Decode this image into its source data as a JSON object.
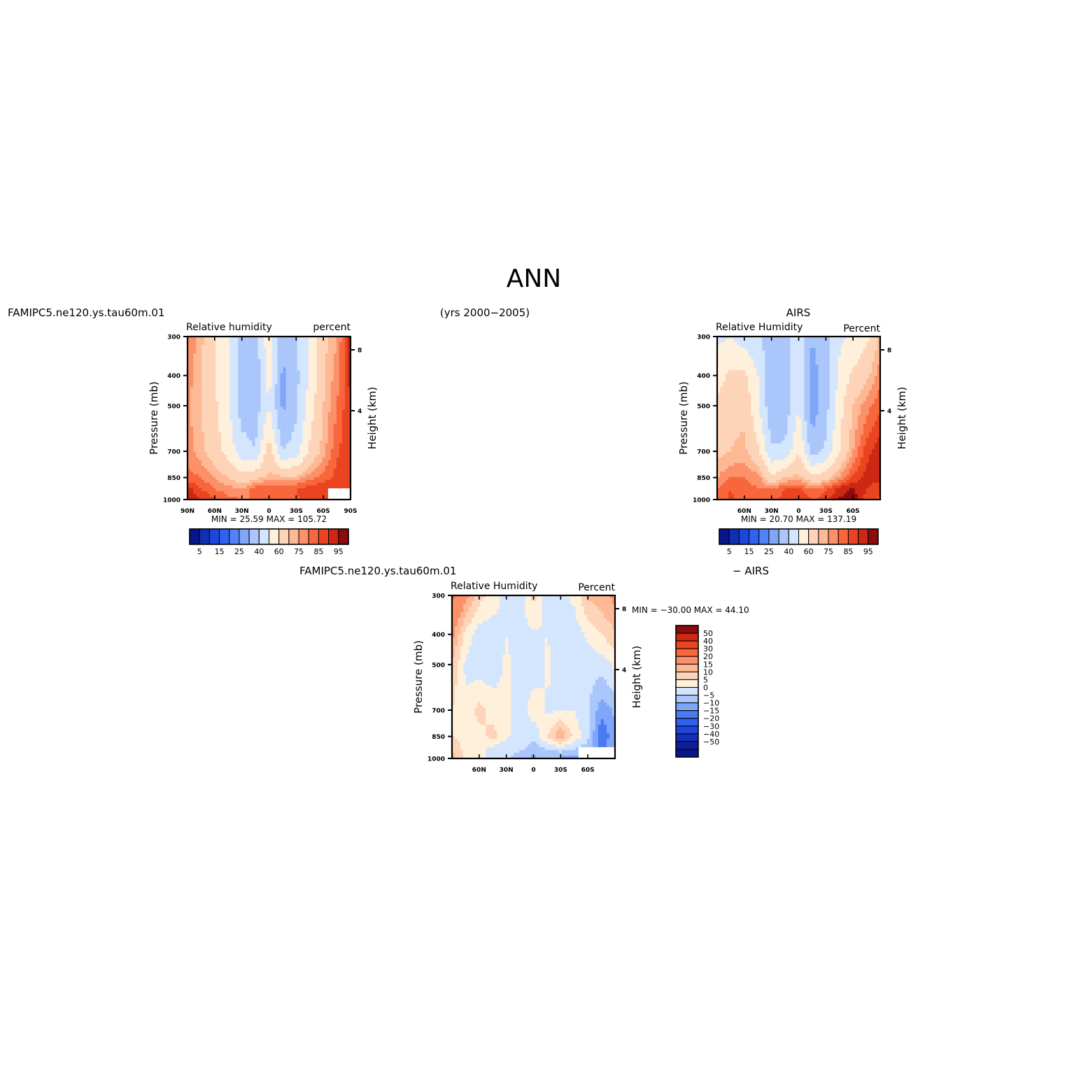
{
  "page_title": "ANN",
  "years": "(yrs 2000−2005)",
  "colors": {
    "abs_scale": [
      "#0a1688",
      "#1030b4",
      "#1e46dc",
      "#2f62ef",
      "#5283f6",
      "#80a6fa",
      "#aac6fb",
      "#d4e6fd",
      "#fff0dc",
      "#fed4b8",
      "#fdb894",
      "#fc9068",
      "#f8663c",
      "#ea4420",
      "#cc2814",
      "#8c0c0c"
    ],
    "diff_scale": [
      "#0a1688",
      "#10209c",
      "#1430b8",
      "#1e46dc",
      "#2f62ef",
      "#4a7af4",
      "#80a6fa",
      "#aac6fb",
      "#d4e6fd",
      "#fff0dc",
      "#fed4b8",
      "#fdb894",
      "#fc9068",
      "#f8663c",
      "#ea4420",
      "#cc2814",
      "#8c0c0c"
    ]
  },
  "chart_data": [
    {
      "type": "heatmap",
      "case_label": "FAMIPC5.ne120.ys.tau60m.01",
      "title": "Relative humidity",
      "units": "percent",
      "ylabel": "Pressure (mb)",
      "ylabel_right": "Height (km)",
      "y_ticks": [
        "300",
        "400",
        "500",
        "700",
        "850",
        "1000"
      ],
      "y_tick_values": [
        300,
        400,
        500,
        700,
        850,
        1000
      ],
      "ylim": [
        1000,
        300
      ],
      "right_ticks": [
        "8",
        "4"
      ],
      "x_ticks": [
        "90N",
        "60N",
        "30N",
        "0",
        "30S",
        "60S",
        "90S"
      ],
      "xlim": [
        90,
        -90
      ],
      "min_max": "MIN =   25.59   MAX = 105.72",
      "colorbar_labels": [
        "5",
        "15",
        "25",
        "40",
        "60",
        "75",
        "85",
        "95"
      ],
      "colorbar_levels": [
        5,
        10,
        15,
        20,
        25,
        30,
        40,
        50,
        60,
        70,
        75,
        80,
        85,
        90,
        95
      ],
      "masked_region": {
        "lat": [
          -64,
          -90
        ],
        "pressure": [
          925,
          1000
        ]
      },
      "field": {
        "lat": [
          90,
          75,
          60,
          45,
          30,
          15,
          0,
          -15,
          -30,
          -45,
          -60,
          -75,
          -90
        ],
        "pressure": [
          300,
          400,
          500,
          700,
          850,
          925,
          1000
        ],
        "values": [
          [
            80,
            72,
            60,
            50,
            38,
            35,
            58,
            32,
            40,
            52,
            68,
            75,
            92
          ],
          [
            78,
            70,
            60,
            50,
            35,
            33,
            54,
            28,
            37,
            52,
            68,
            78,
            92
          ],
          [
            76,
            70,
            62,
            52,
            35,
            35,
            50,
            28,
            38,
            55,
            70,
            80,
            90
          ],
          [
            78,
            72,
            65,
            56,
            45,
            40,
            66,
            40,
            45,
            62,
            73,
            84,
            90
          ],
          [
            82,
            80,
            75,
            70,
            64,
            68,
            72,
            72,
            72,
            78,
            82,
            87,
            88
          ],
          [
            92,
            85,
            80,
            77,
            75,
            83,
            85,
            82,
            85,
            88,
            90,
            88,
            88
          ],
          [
            96,
            90,
            86,
            82,
            80,
            80,
            80,
            82,
            84,
            88,
            90,
            86,
            85
          ]
        ]
      }
    },
    {
      "type": "heatmap",
      "case_label": "AIRS",
      "title": "Relative Humidity",
      "units": "Percent",
      "ylabel": "Pressure (mb)",
      "ylabel_right": "Height (km)",
      "y_ticks": [
        "300",
        "400",
        "500",
        "700",
        "850",
        "1000"
      ],
      "y_tick_values": [
        300,
        400,
        500,
        700,
        850,
        1000
      ],
      "ylim": [
        1000,
        300
      ],
      "right_ticks": [
        "8",
        "4"
      ],
      "x_ticks": [
        "60N",
        "30N",
        "0",
        "30S",
        "60S"
      ],
      "xlim": [
        90,
        -90
      ],
      "min_max": "MIN =   20.70   MAX = 137.19",
      "colorbar_labels": [
        "5",
        "15",
        "25",
        "40",
        "60",
        "75",
        "85",
        "95"
      ],
      "colorbar_levels": [
        5,
        10,
        15,
        20,
        25,
        30,
        40,
        50,
        60,
        70,
        75,
        80,
        85,
        90,
        95
      ],
      "field": {
        "lat": [
          90,
          75,
          60,
          45,
          30,
          15,
          0,
          -15,
          -30,
          -45,
          -60,
          -75,
          -90
        ],
        "pressure": [
          300,
          400,
          500,
          700,
          850,
          925,
          1000
        ],
        "values": [
          [
            48,
            50,
            45,
            42,
            35,
            35,
            46,
            30,
            38,
            48,
            52,
            58,
            72
          ],
          [
            56,
            62,
            62,
            50,
            30,
            33,
            48,
            25,
            36,
            52,
            62,
            68,
            78
          ],
          [
            62,
            68,
            68,
            52,
            32,
            34,
            50,
            24,
            36,
            56,
            70,
            78,
            84
          ],
          [
            68,
            70,
            72,
            62,
            42,
            42,
            60,
            36,
            42,
            60,
            75,
            88,
            94
          ],
          [
            75,
            80,
            80,
            78,
            62,
            70,
            72,
            62,
            66,
            76,
            86,
            92,
            92
          ],
          [
            80,
            85,
            82,
            80,
            80,
            85,
            86,
            80,
            84,
            92,
            96,
            90,
            86
          ],
          [
            82,
            86,
            82,
            80,
            82,
            88,
            90,
            84,
            88,
            96,
            98,
            88,
            84
          ]
        ]
      }
    },
    {
      "type": "heatmap",
      "case_label": "FAMIPC5.ne120.ys.tau60m.01",
      "case_suffix": "− AIRS",
      "title": "Relative Humidity",
      "units": "Percent",
      "ylabel": "Pressure (mb)",
      "ylabel_right": "Height (km)",
      "y_ticks": [
        "300",
        "400",
        "500",
        "700",
        "850",
        "1000"
      ],
      "y_tick_values": [
        300,
        400,
        500,
        700,
        850,
        1000
      ],
      "ylim": [
        1000,
        300
      ],
      "right_ticks": [
        "8",
        "4"
      ],
      "x_ticks": [
        "60N",
        "30N",
        "0",
        "30S",
        "60S"
      ],
      "xlim": [
        90,
        -90
      ],
      "min_max": "MIN = −30.00   MAX =   44.10",
      "colorbar_labels": [
        "50",
        "40",
        "30",
        "20",
        "15",
        "10",
        "5",
        "0",
        "−5",
        "−10",
        "−15",
        "−20",
        "−30",
        "−40",
        "−50"
      ],
      "colorbar_levels": [
        -50,
        -40,
        -30,
        -20,
        -15,
        -10,
        -5,
        0,
        5,
        10,
        15,
        20,
        30,
        40,
        50
      ],
      "masked_region": {
        "lat": [
          -50,
          -90
        ],
        "pressure": [
          920,
          1000
        ]
      },
      "field": {
        "lat": [
          90,
          75,
          60,
          45,
          30,
          15,
          0,
          -15,
          -30,
          -45,
          -60,
          -75,
          -90
        ],
        "pressure": [
          300,
          400,
          500,
          700,
          850,
          925,
          1000
        ],
        "values": [
          [
            32,
            22,
            12,
            8,
            3,
            2,
            12,
            2,
            4,
            6,
            16,
            18,
            22
          ],
          [
            22,
            8,
            2,
            2,
            5,
            3,
            4,
            5,
            3,
            2,
            6,
            10,
            14
          ],
          [
            14,
            4,
            2,
            2,
            6,
            3,
            2,
            6,
            3,
            2,
            2,
            2,
            6
          ],
          [
            10,
            6,
            12,
            8,
            6,
            2,
            8,
            4,
            5,
            5,
            1,
            -8,
            -4
          ],
          [
            10,
            8,
            8,
            12,
            6,
            3,
            1,
            10,
            20,
            8,
            2,
            -15,
            -6
          ],
          [
            14,
            8,
            6,
            4,
            1,
            2,
            -2,
            1,
            3,
            1,
            -3,
            -12,
            -4
          ],
          [
            18,
            8,
            6,
            4,
            2,
            -4,
            -6,
            -4,
            -6,
            -8,
            -8,
            -6,
            -2
          ]
        ]
      }
    }
  ]
}
